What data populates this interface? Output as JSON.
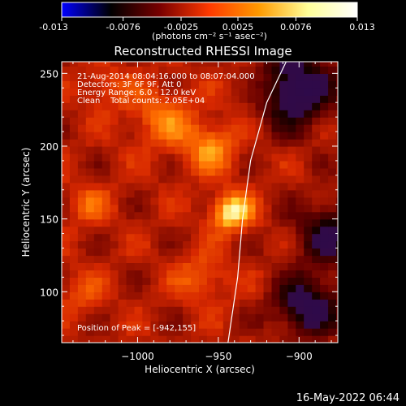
{
  "colorbar": {
    "min": -0.013,
    "max": 0.013,
    "tick_labels": [
      "-0.013",
      "-0.0076",
      "-0.0025",
      "0.0025",
      "0.0076",
      "0.013"
    ],
    "tick_values": [
      -0.013,
      -0.0076,
      -0.0025,
      0.0025,
      0.0076,
      0.013
    ],
    "unit_label": "(photons cm⁻² s⁻¹ asec⁻²)",
    "colors": [
      "#0000ff",
      "#000000",
      "#7a0000",
      "#ff3a00",
      "#ff9a00",
      "#ffff99",
      "#ffffff"
    ]
  },
  "chart_data": {
    "type": "heatmap",
    "title": "Reconstructed RHESSI Image",
    "xlabel": "Heliocentric X (arcsec)",
    "ylabel": "Heliocentric Y (arcsec)",
    "xlim": [
      -1047,
      -876
    ],
    "ylim": [
      65,
      258
    ],
    "x_ticks": [
      -1000,
      -950,
      -900
    ],
    "x_tick_labels": [
      "−1000",
      "−950",
      "−900"
    ],
    "y_ticks": [
      100,
      150,
      200,
      250
    ],
    "y_tick_labels": [
      "100",
      "150",
      "200",
      "250"
    ],
    "info_lines": [
      "21-Aug-2014 08:04:16.000 to 08:07:04.000",
      "Detectors: 3F 6F 9F, Att 0",
      "Energy Range: 6.0 - 12.0 keV",
      "Clean    Total counts: 2.05E+04"
    ],
    "peak_label": "Position of Peak = [-942,155]",
    "peak": [
      -942,
      155
    ],
    "limb_curve": [
      [
        -944,
        65
      ],
      [
        -938,
        110
      ],
      [
        -935,
        150
      ],
      [
        -930,
        190
      ],
      [
        -920,
        230
      ],
      [
        -908,
        258
      ]
    ],
    "sources": [
      {
        "x": -942,
        "y": 155,
        "sigma": 9,
        "amp": 1.0
      },
      {
        "x": -955,
        "y": 200,
        "sigma": 12,
        "amp": 0.6
      },
      {
        "x": -985,
        "y": 220,
        "sigma": 14,
        "amp": 0.5
      },
      {
        "x": -925,
        "y": 240,
        "sigma": 12,
        "amp": 0.45
      },
      {
        "x": -1030,
        "y": 160,
        "sigma": 10,
        "amp": 0.35
      },
      {
        "x": -1020,
        "y": 240,
        "sigma": 10,
        "amp": 0.35
      },
      {
        "x": -960,
        "y": 110,
        "sigma": 12,
        "amp": 0.4
      },
      {
        "x": -1035,
        "y": 100,
        "sigma": 10,
        "amp": 0.3
      }
    ],
    "dark_regions": [
      {
        "x": -905,
        "y": 240,
        "sigma": 18,
        "amp": 0.6
      },
      {
        "x": -895,
        "y": 90,
        "sigma": 14,
        "amp": 0.5
      },
      {
        "x": -880,
        "y": 140,
        "sigma": 16,
        "amp": 0.4
      }
    ]
  },
  "timestamp": "16-May-2022 06:44"
}
